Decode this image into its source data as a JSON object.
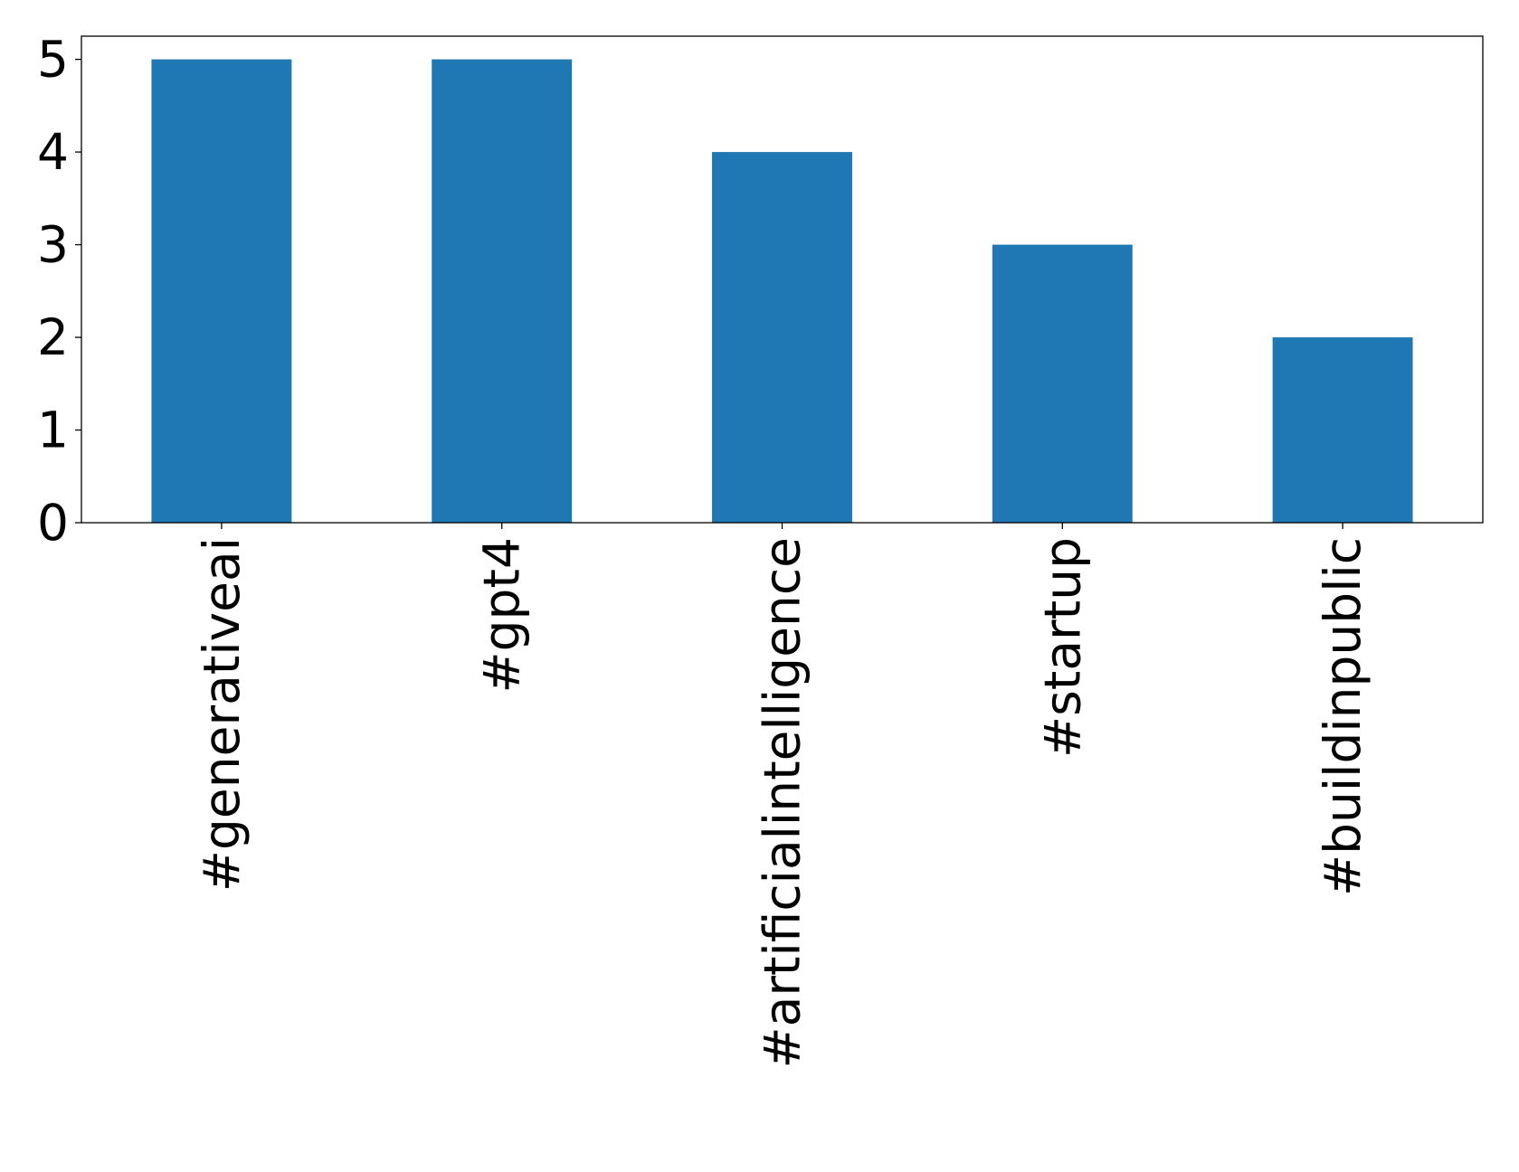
{
  "chart_data": {
    "type": "bar",
    "categories": [
      "#generativeai",
      "#gpt4",
      "#artificialintelligence",
      "#startup",
      "#buildinpublic"
    ],
    "values": [
      5,
      5,
      4,
      3,
      2
    ],
    "color": "#1f77b4",
    "ylim": [
      0,
      5.25
    ],
    "yticks": [
      0,
      1,
      2,
      3,
      4,
      5
    ],
    "grid": false
  }
}
